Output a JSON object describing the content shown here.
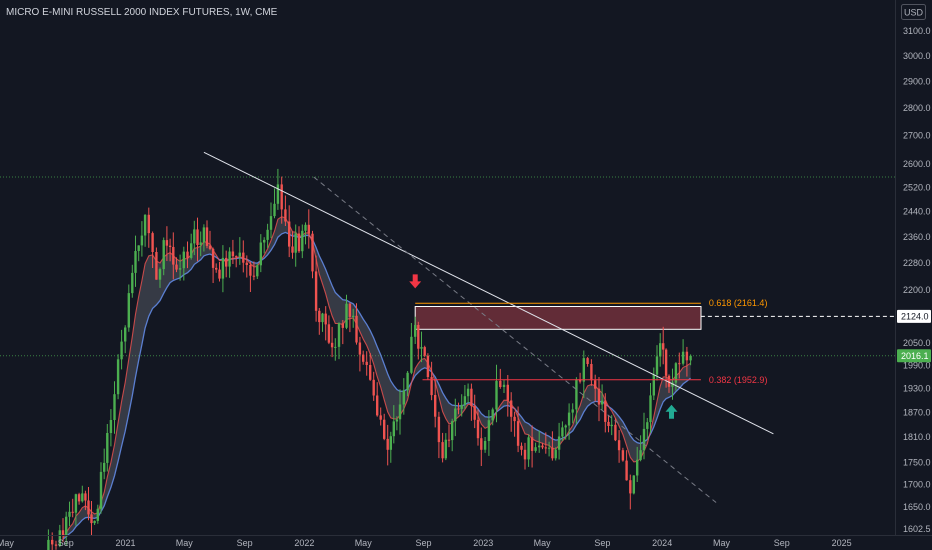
{
  "header": {
    "title": "MICRO E-MINI RUSSELL 2000 INDEX FUTURES, 1W, CME",
    "currency": "USD"
  },
  "colors": {
    "background": "#131722",
    "bull": "#26a69a",
    "bull_body": "#4caf50",
    "bear": "#ef5350",
    "axis_text": "#b2b5be",
    "fib_618": "#ff9800",
    "fib_382": "#f23645",
    "zone_fill": "#f7525f",
    "trendline": "#e0e3eb",
    "ema_fast": "#ef5350",
    "ema_slow": "#5b7fd1",
    "ribbon": "#787b86",
    "arrow_down": "#f23645",
    "arrow_up": "#22ab94"
  },
  "chart_data": {
    "type": "candlestick",
    "title": "MICRO E-MINI RUSSELL 2000 INDEX FUTURES, 1W, CME",
    "x_axis": {
      "tick_labels": [
        "May",
        "Sep",
        "2021",
        "May",
        "Sep",
        "2022",
        "May",
        "Sep",
        "2023",
        "May",
        "Sep",
        "2024",
        "May",
        "Sep",
        "2025"
      ],
      "tick_dates": [
        "2020-05-01",
        "2020-09-01",
        "2021-01-01",
        "2021-05-01",
        "2021-09-01",
        "2022-01-01",
        "2022-05-01",
        "2022-09-01",
        "2023-01-01",
        "2023-05-01",
        "2023-09-01",
        "2024-01-01",
        "2024-05-01",
        "2024-09-01",
        "2025-01-01"
      ],
      "range": [
        "2020-04-20",
        "2025-04-20"
      ]
    },
    "y_axis": {
      "scale": "log",
      "tick_labels": [
        "1602.5",
        "1650.0",
        "1700.0",
        "1750.0",
        "1810.0",
        "1870.0",
        "1930.0",
        "1990.0",
        "2050.0",
        "2124.0",
        "2200.0",
        "2280.0",
        "2360.0",
        "2440.0",
        "2520.0",
        "2600.0",
        "2700.0",
        "2800.0",
        "2900.0",
        "3000.0",
        "3100.0"
      ],
      "tick_values": [
        1602.5,
        1650,
        1700,
        1750,
        1810,
        1870,
        1930,
        1990,
        2050,
        2124,
        2200,
        2280,
        2360,
        2440,
        2520,
        2600,
        2700,
        2800,
        2900,
        3000,
        3100
      ],
      "range": [
        1590,
        3230
      ]
    },
    "price_labels": {
      "marked_level": {
        "value": 2124.0,
        "label": "2124.0"
      },
      "last_price": {
        "value": 2016.1,
        "label": "2016.1"
      }
    },
    "fibonacci": [
      {
        "level": "0.618",
        "price": 2161.4,
        "label": "0.618 (2161.4)"
      },
      {
        "level": "0.382",
        "price": 1952.9,
        "label": "0.382 (1952.9)"
      }
    ],
    "resistance_zone": {
      "from_date": "2022-08-15",
      "to_date": "2024-03-20",
      "low": 2088,
      "high": 2152
    },
    "dotted_levels": [
      {
        "price": 2555,
        "color": "#4caf50"
      },
      {
        "price": 2016.1,
        "color": "#4caf50"
      }
    ],
    "trendlines": [
      {
        "style": "solid",
        "from": {
          "date": "2021-06-10",
          "price": 2640
        },
        "to": {
          "date": "2024-08-15",
          "price": 1818
        }
      },
      {
        "style": "dashed",
        "from": {
          "date": "2022-01-20",
          "price": 2555
        },
        "to": {
          "date": "2024-04-20",
          "price": 1660
        }
      }
    ],
    "arrows": [
      {
        "direction": "down",
        "date": "2022-08-15",
        "price": 2225
      },
      {
        "direction": "up",
        "date": "2024-01-20",
        "price": 1872
      }
    ],
    "pivots": [
      [
        "2020-07-20",
        1555
      ],
      [
        "2020-08-20",
        1600
      ],
      [
        "2020-10-05",
        1680
      ],
      [
        "2020-10-30",
        1620
      ],
      [
        "2020-11-25",
        1820
      ],
      [
        "2021-01-15",
        2250
      ],
      [
        "2021-02-10",
        2430
      ],
      [
        "2021-03-05",
        2230
      ],
      [
        "2021-03-20",
        2350
      ],
      [
        "2021-04-15",
        2260
      ],
      [
        "2021-05-15",
        2340
      ],
      [
        "2021-06-10",
        2390
      ],
      [
        "2021-07-05",
        2260
      ],
      [
        "2021-08-15",
        2300
      ],
      [
        "2021-09-20",
        2240
      ],
      [
        "2021-11-08",
        2530
      ],
      [
        "2021-12-01",
        2330
      ],
      [
        "2022-01-10",
        2370
      ],
      [
        "2022-01-25",
        2140
      ],
      [
        "2022-03-05",
        2040
      ],
      [
        "2022-03-28",
        2160
      ],
      [
        "2022-05-01",
        2000
      ],
      [
        "2022-06-20",
        1780
      ],
      [
        "2022-07-15",
        1890
      ],
      [
        "2022-08-15",
        2100
      ],
      [
        "2022-09-10",
        1960
      ],
      [
        "2022-10-10",
        1760
      ],
      [
        "2022-11-05",
        1880
      ],
      [
        "2022-12-01",
        1930
      ],
      [
        "2022-12-28",
        1780
      ],
      [
        "2023-01-28",
        1950
      ],
      [
        "2023-02-20",
        1900
      ],
      [
        "2023-03-20",
        1780
      ],
      [
        "2023-04-25",
        1790
      ],
      [
        "2023-05-22",
        1760
      ],
      [
        "2023-06-25",
        1870
      ],
      [
        "2023-07-25",
        2010
      ],
      [
        "2023-08-25",
        1890
      ],
      [
        "2023-09-20",
        1840
      ],
      [
        "2023-10-28",
        1680
      ],
      [
        "2023-11-25",
        1830
      ],
      [
        "2023-12-28",
        2050
      ],
      [
        "2024-01-15",
        1935
      ],
      [
        "2024-02-05",
        1995
      ],
      [
        "2024-02-28",
        2016.1
      ]
    ]
  }
}
